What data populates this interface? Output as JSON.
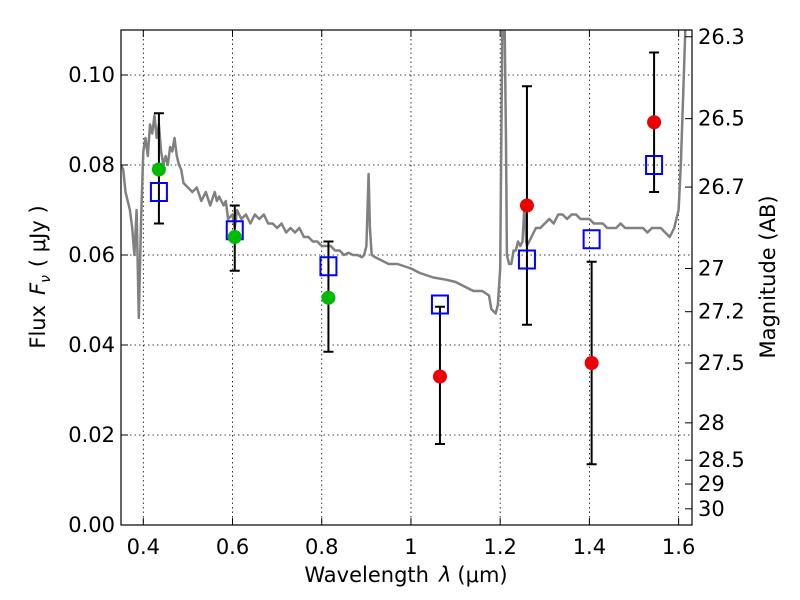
{
  "chart_data": {
    "type": "scatter",
    "xlabel_text": "Wavelength",
    "xlabel_symbol": "λ",
    "xlabel_unit": "(μm)",
    "ylabel_text": "Flux",
    "ylabel_symbol": "F",
    "ylabel_subscript": "ν",
    "ylabel_unit": "( μJy )",
    "y2label": "Magnitude (AB)",
    "xlim": [
      0.35,
      1.63
    ],
    "ylim": [
      0.0,
      0.11
    ],
    "grid": true,
    "x_ticks": [
      0.4,
      0.6,
      0.8,
      1.0,
      1.2,
      1.4,
      1.6
    ],
    "x_tick_labels": [
      "0.4",
      "0.6",
      "0.8",
      "1",
      "1.2",
      "1.4",
      "1.6"
    ],
    "y_ticks": [
      0.0,
      0.02,
      0.04,
      0.06,
      0.08,
      0.1
    ],
    "y_tick_labels": [
      "0.00",
      "0.02",
      "0.04",
      "0.06",
      "0.08",
      "0.10"
    ],
    "y2_ticks": [
      {
        "label": "26.3",
        "flux": 0.1085
      },
      {
        "label": "26.5",
        "flux": 0.0903
      },
      {
        "label": "26.7",
        "flux": 0.0751
      },
      {
        "label": "27",
        "flux": 0.057
      },
      {
        "label": "27.2",
        "flux": 0.0474
      },
      {
        "label": "27.5",
        "flux": 0.036
      },
      {
        "label": "28",
        "flux": 0.0227
      },
      {
        "label": "28.5",
        "flux": 0.0144
      },
      {
        "label": "29",
        "flux": 0.0091
      },
      {
        "label": "30",
        "flux": 0.0036
      }
    ],
    "colors": {
      "spectrum": "#808080",
      "model": "#0000ff",
      "green": "#00bb00",
      "red": "#ee0000",
      "errorbar": "#000000"
    },
    "spectrum": [
      [
        0.35,
        0.08
      ],
      [
        0.355,
        0.079
      ],
      [
        0.36,
        0.074
      ],
      [
        0.365,
        0.072
      ],
      [
        0.37,
        0.07
      ],
      [
        0.375,
        0.066
      ],
      [
        0.38,
        0.06
      ],
      [
        0.385,
        0.07
      ],
      [
        0.39,
        0.046
      ],
      [
        0.395,
        0.068
      ],
      [
        0.4,
        0.083
      ],
      [
        0.405,
        0.086
      ],
      [
        0.41,
        0.082
      ],
      [
        0.415,
        0.089
      ],
      [
        0.42,
        0.087
      ],
      [
        0.425,
        0.091
      ],
      [
        0.43,
        0.086
      ],
      [
        0.435,
        0.089
      ],
      [
        0.44,
        0.083
      ],
      [
        0.445,
        0.08
      ],
      [
        0.45,
        0.082
      ],
      [
        0.455,
        0.08
      ],
      [
        0.46,
        0.084
      ],
      [
        0.465,
        0.083
      ],
      [
        0.47,
        0.086
      ],
      [
        0.475,
        0.082
      ],
      [
        0.48,
        0.08
      ],
      [
        0.485,
        0.079
      ],
      [
        0.49,
        0.076
      ],
      [
        0.5,
        0.075
      ],
      [
        0.51,
        0.074
      ],
      [
        0.52,
        0.075
      ],
      [
        0.53,
        0.072
      ],
      [
        0.54,
        0.074
      ],
      [
        0.55,
        0.071
      ],
      [
        0.56,
        0.074
      ],
      [
        0.565,
        0.072
      ],
      [
        0.57,
        0.073
      ],
      [
        0.58,
        0.071
      ],
      [
        0.585,
        0.072
      ],
      [
        0.59,
        0.068
      ],
      [
        0.6,
        0.069
      ],
      [
        0.605,
        0.066
      ],
      [
        0.61,
        0.07
      ],
      [
        0.62,
        0.068
      ],
      [
        0.63,
        0.069
      ],
      [
        0.64,
        0.067
      ],
      [
        0.65,
        0.069
      ],
      [
        0.66,
        0.068
      ],
      [
        0.67,
        0.069
      ],
      [
        0.68,
        0.067
      ],
      [
        0.69,
        0.067
      ],
      [
        0.7,
        0.066
      ],
      [
        0.71,
        0.067
      ],
      [
        0.72,
        0.065
      ],
      [
        0.73,
        0.066
      ],
      [
        0.74,
        0.065
      ],
      [
        0.75,
        0.066
      ],
      [
        0.76,
        0.064
      ],
      [
        0.77,
        0.064
      ],
      [
        0.78,
        0.063
      ],
      [
        0.79,
        0.063
      ],
      [
        0.8,
        0.062
      ],
      [
        0.81,
        0.062
      ],
      [
        0.82,
        0.062
      ],
      [
        0.83,
        0.061
      ],
      [
        0.84,
        0.061
      ],
      [
        0.85,
        0.06
      ],
      [
        0.86,
        0.0605
      ],
      [
        0.87,
        0.06
      ],
      [
        0.88,
        0.06
      ],
      [
        0.89,
        0.0595
      ],
      [
        0.895,
        0.06
      ],
      [
        0.9,
        0.062
      ],
      [
        0.905,
        0.078
      ],
      [
        0.908,
        0.066
      ],
      [
        0.912,
        0.06
      ],
      [
        0.92,
        0.0595
      ],
      [
        0.93,
        0.059
      ],
      [
        0.95,
        0.058
      ],
      [
        0.97,
        0.058
      ],
      [
        1.0,
        0.057
      ],
      [
        1.02,
        0.056
      ],
      [
        1.05,
        0.055
      ],
      [
        1.08,
        0.0545
      ],
      [
        1.1,
        0.054
      ],
      [
        1.12,
        0.053
      ],
      [
        1.14,
        0.052
      ],
      [
        1.16,
        0.052
      ],
      [
        1.175,
        0.051
      ],
      [
        1.18,
        0.048
      ],
      [
        1.19,
        0.047
      ],
      [
        1.195,
        0.049
      ],
      [
        1.2,
        0.057
      ],
      [
        1.202,
        0.08
      ],
      [
        1.205,
        0.112
      ],
      [
        1.21,
        0.112
      ],
      [
        1.213,
        0.085
      ],
      [
        1.215,
        0.06
      ],
      [
        1.22,
        0.058
      ],
      [
        1.225,
        0.058
      ],
      [
        1.23,
        0.061
      ],
      [
        1.235,
        0.061
      ],
      [
        1.24,
        0.063
      ],
      [
        1.245,
        0.062
      ],
      [
        1.25,
        0.063
      ],
      [
        1.255,
        0.072
      ],
      [
        1.258,
        0.063
      ],
      [
        1.26,
        0.062
      ],
      [
        1.27,
        0.064
      ],
      [
        1.28,
        0.066
      ],
      [
        1.29,
        0.066
      ],
      [
        1.3,
        0.067
      ],
      [
        1.31,
        0.068
      ],
      [
        1.32,
        0.067
      ],
      [
        1.33,
        0.069
      ],
      [
        1.34,
        0.069
      ],
      [
        1.35,
        0.068
      ],
      [
        1.36,
        0.069
      ],
      [
        1.37,
        0.069
      ],
      [
        1.38,
        0.068
      ],
      [
        1.39,
        0.068
      ],
      [
        1.4,
        0.068
      ],
      [
        1.41,
        0.067
      ],
      [
        1.42,
        0.067
      ],
      [
        1.43,
        0.067
      ],
      [
        1.44,
        0.066
      ],
      [
        1.45,
        0.066
      ],
      [
        1.46,
        0.066
      ],
      [
        1.47,
        0.067
      ],
      [
        1.48,
        0.066
      ],
      [
        1.49,
        0.066
      ],
      [
        1.5,
        0.066
      ],
      [
        1.51,
        0.066
      ],
      [
        1.52,
        0.066
      ],
      [
        1.53,
        0.065
      ],
      [
        1.54,
        0.066
      ],
      [
        1.55,
        0.066
      ],
      [
        1.56,
        0.066
      ],
      [
        1.57,
        0.065
      ],
      [
        1.58,
        0.064
      ],
      [
        1.59,
        0.066
      ],
      [
        1.6,
        0.07
      ],
      [
        1.605,
        0.08
      ],
      [
        1.61,
        0.095
      ],
      [
        1.615,
        0.11
      ],
      [
        1.618,
        0.112
      ]
    ],
    "model_points": [
      {
        "x": 0.435,
        "y": 0.074
      },
      {
        "x": 0.605,
        "y": 0.0655
      },
      {
        "x": 0.815,
        "y": 0.0575
      },
      {
        "x": 1.065,
        "y": 0.049
      },
      {
        "x": 1.26,
        "y": 0.059
      },
      {
        "x": 1.405,
        "y": 0.0635
      },
      {
        "x": 1.545,
        "y": 0.08
      }
    ],
    "observed_points": [
      {
        "x": 0.435,
        "y": 0.079,
        "err_lo": 0.067,
        "err_hi": 0.0915,
        "color": "green"
      },
      {
        "x": 0.605,
        "y": 0.064,
        "err_lo": 0.0565,
        "err_hi": 0.071,
        "color": "green"
      },
      {
        "x": 0.815,
        "y": 0.0505,
        "err_lo": 0.0385,
        "err_hi": 0.063,
        "color": "green"
      },
      {
        "x": 1.065,
        "y": 0.033,
        "err_lo": 0.018,
        "err_hi": 0.0485,
        "color": "red"
      },
      {
        "x": 1.26,
        "y": 0.071,
        "err_lo": 0.0445,
        "err_hi": 0.0975,
        "color": "red"
      },
      {
        "x": 1.405,
        "y": 0.036,
        "err_lo": 0.0135,
        "err_hi": 0.0585,
        "color": "red"
      },
      {
        "x": 1.545,
        "y": 0.0895,
        "err_lo": 0.074,
        "err_hi": 0.105,
        "color": "red"
      }
    ]
  }
}
